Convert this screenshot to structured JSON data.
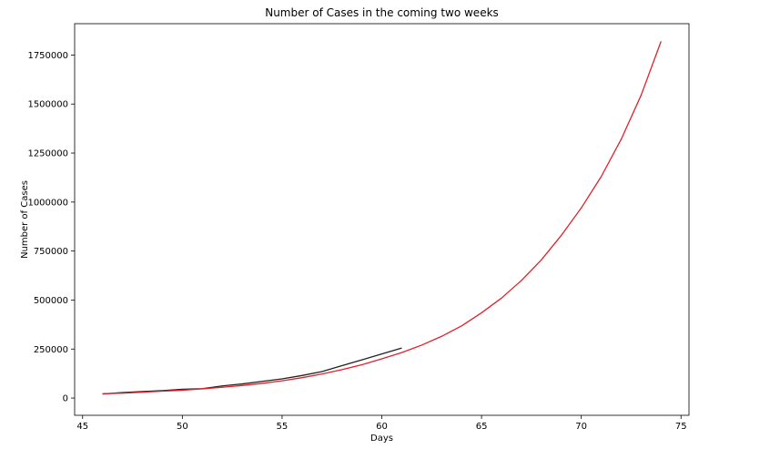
{
  "chart_data": {
    "type": "line",
    "title": "Number of Cases in the coming two weeks",
    "xlabel": "Days",
    "ylabel": "Number of Cases",
    "xlim": [
      44.6,
      75.4
    ],
    "ylim": [
      -88000,
      1910000
    ],
    "grid": false,
    "x_ticks": [
      45,
      50,
      55,
      60,
      65,
      70,
      75
    ],
    "x_tick_labels": [
      "45",
      "50",
      "55",
      "60",
      "65",
      "70",
      "75"
    ],
    "y_ticks": [
      0,
      250000,
      500000,
      750000,
      1000000,
      1250000,
      1500000,
      1750000
    ],
    "y_tick_labels": [
      "0",
      "250000",
      "500000",
      "750000",
      "1000000",
      "1250000",
      "1500000",
      "1750000"
    ],
    "series": [
      {
        "color": "#222222",
        "x": [
          46,
          47,
          48,
          49,
          50,
          51,
          52,
          53,
          54,
          55,
          56,
          57,
          58,
          59,
          60,
          61
        ],
        "y": [
          21000,
          28000,
          33000,
          38000,
          45000,
          48000,
          62000,
          72000,
          85000,
          98000,
          115000,
          135000,
          165000,
          195000,
          225000,
          255000
        ]
      },
      {
        "color": "#e0202a",
        "x": [
          46,
          47,
          48,
          49,
          50,
          51,
          52,
          53,
          54,
          55,
          56,
          57,
          58,
          59,
          60,
          61,
          62,
          63,
          64,
          65,
          66,
          67,
          68,
          69,
          70,
          71,
          72,
          73,
          74
        ],
        "y": [
          22000,
          25000,
          30000,
          35000,
          40000,
          47000,
          55000,
          64000,
          75000,
          88000,
          104000,
          123000,
          145000,
          170000,
          200000,
          232000,
          270000,
          315000,
          368000,
          435000,
          510000,
          600000,
          705000,
          830000,
          970000,
          1130000,
          1320000,
          1545000,
          1820000
        ]
      }
    ]
  }
}
